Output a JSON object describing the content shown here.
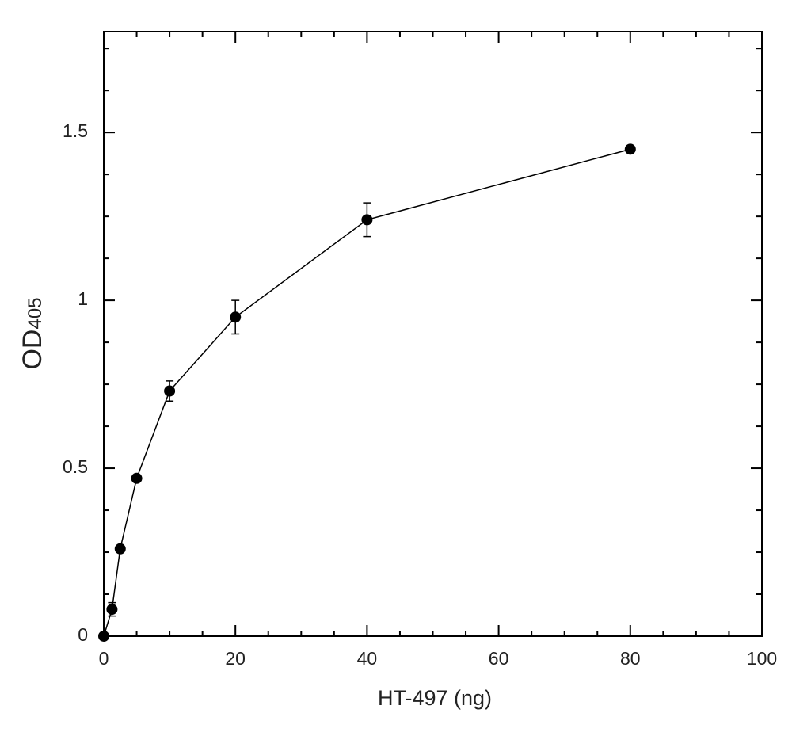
{
  "chart_data": {
    "type": "line",
    "xlabel": "HT-497 (ng)",
    "ylabel": "OD",
    "ylabel_subscript": "405",
    "x": [
      0,
      1.25,
      2.5,
      5,
      10,
      20,
      40,
      80
    ],
    "series": [
      {
        "color": "#000000",
        "values": [
          0,
          0.08,
          0.26,
          0.47,
          0.73,
          0.95,
          1.24,
          1.45
        ],
        "errors": [
          0,
          0.02,
          0.01,
          0.01,
          0.03,
          0.05,
          0.05,
          0.01
        ]
      }
    ],
    "xlim": [
      0,
      100
    ],
    "xticks": [
      0,
      20,
      40,
      60,
      80,
      100
    ],
    "xminor_ticks": [
      5,
      10,
      15,
      25,
      30,
      35,
      45,
      50,
      55,
      65,
      70,
      75,
      85,
      90,
      95
    ],
    "ylim": [
      0,
      1.8
    ],
    "yticks": [
      0,
      0.5,
      1,
      1.5
    ],
    "yminor_ticks": [
      0.125,
      0.25,
      0.375,
      0.625,
      0.75,
      0.875,
      1.125,
      1.25,
      1.375,
      1.625,
      1.75
    ],
    "grid": false
  }
}
